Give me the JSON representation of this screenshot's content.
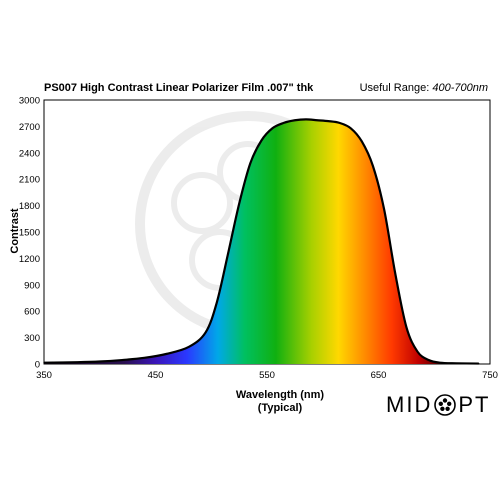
{
  "header": {
    "title": "PS007 High Contrast Linear Polarizer Film .007\" thk",
    "range_label": "Useful Range:",
    "range_value": "400-700nm"
  },
  "brand": {
    "logo_left": "MID",
    "logo_right": "PT"
  },
  "chart_data": {
    "type": "area",
    "title": "PS007 High Contrast Linear Polarizer Film .007\" thk",
    "xlabel": "Wavelength (nm)",
    "xlabel_sub": "(Typical)",
    "ylabel": "Contrast",
    "xlim": [
      350,
      750
    ],
    "ylim": [
      0,
      3000
    ],
    "xticks": [
      350,
      450,
      550,
      650,
      750
    ],
    "yticks": [
      0,
      300,
      600,
      900,
      1200,
      1500,
      1800,
      2100,
      2400,
      2700,
      3000
    ],
    "grid": false,
    "fill": "visible spectrum gradient",
    "series": [
      {
        "x": [
          350,
          380,
          400,
          420,
          440,
          460,
          480,
          495,
          505,
          515,
          525,
          535,
          545,
          555,
          565,
          575,
          585,
          595,
          605,
          615,
          625,
          635,
          645,
          655,
          665,
          675,
          685,
          695,
          705,
          720,
          740
        ],
        "y": [
          15,
          20,
          28,
          45,
          70,
          115,
          195,
          360,
          700,
          1250,
          1820,
          2280,
          2540,
          2680,
          2740,
          2770,
          2780,
          2770,
          2760,
          2740,
          2680,
          2530,
          2250,
          1760,
          1030,
          420,
          140,
          45,
          15,
          8,
          5
        ]
      }
    ]
  }
}
